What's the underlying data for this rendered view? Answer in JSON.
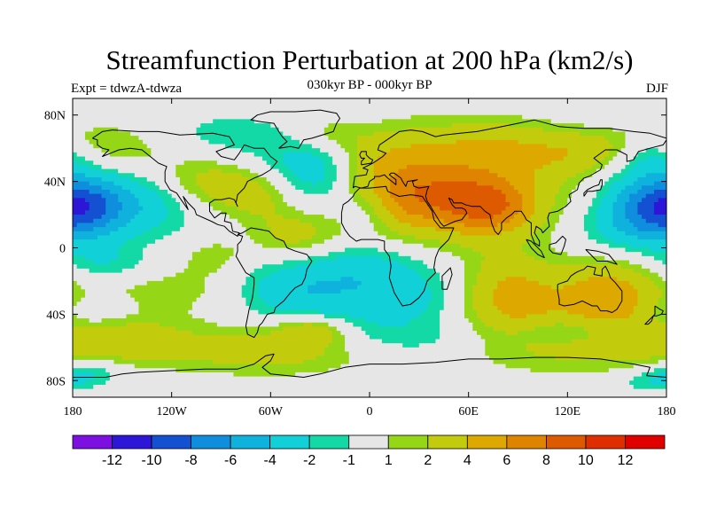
{
  "chart_data": {
    "type": "heatmap",
    "title": "Streamfunction Perturbation at 200 hPa (km2/s)",
    "subtitle": "030kyr BP - 000kyr BP",
    "left_label": "Expt = tdwzA-tdwza",
    "right_label": "DJF",
    "xlabel": "",
    "ylabel": "",
    "xlim": [
      -180,
      180
    ],
    "ylim": [
      -90,
      90
    ],
    "x_ticks": [
      {
        "value": -180,
        "label": "180"
      },
      {
        "value": -120,
        "label": "120W"
      },
      {
        "value": -60,
        "label": "60W"
      },
      {
        "value": 0,
        "label": "0"
      },
      {
        "value": 60,
        "label": "60E"
      },
      {
        "value": 120,
        "label": "120E"
      },
      {
        "value": 180,
        "label": "180"
      }
    ],
    "y_ticks": [
      {
        "value": 80,
        "label": "80N"
      },
      {
        "value": 40,
        "label": "40N"
      },
      {
        "value": 0,
        "label": "0"
      },
      {
        "value": -40,
        "label": "40S"
      },
      {
        "value": -80,
        "label": "80S"
      }
    ],
    "colorbar": {
      "levels": [
        -12,
        -10,
        -8,
        -6,
        -4,
        -2,
        -1,
        1,
        2,
        4,
        6,
        8,
        10,
        12
      ],
      "labels": [
        "-12",
        "-10",
        "-8",
        "-6",
        "-4",
        "-2",
        "-1",
        "1",
        "2",
        "4",
        "6",
        "8",
        "10",
        "12"
      ],
      "colors": [
        "#7b10e0",
        "#2e16d8",
        "#1450d2",
        "#0f8edd",
        "#0fb2dd",
        "#12d0d8",
        "#12d9a5",
        "#e6e6e6",
        "#95d617",
        "#c3cc0c",
        "#dda800",
        "#df8400",
        "#dd5a00",
        "#df2e00",
        "#e00000"
      ]
    },
    "field_features": [
      {
        "name": "Atlantic-Eurasia high",
        "lon": 40,
        "lat": 38,
        "value": 6
      },
      {
        "name": "Tibet high",
        "lon": 72,
        "lat": 25,
        "value": 8
      },
      {
        "name": "North Atlantic low",
        "lon": -22,
        "lat": 48,
        "value": -5
      },
      {
        "name": "Western Pacific low",
        "lon": 175,
        "lat": 25,
        "value": -5
      },
      {
        "name": "Eastern Pacific low",
        "lon": -175,
        "lat": 25,
        "value": -5
      },
      {
        "name": "Southern Atlantic-Africa low",
        "lon": 10,
        "lat": -25,
        "value": -3
      },
      {
        "name": "Australia high",
        "lon": 145,
        "lat": -28,
        "value": 5
      },
      {
        "name": "Indian Ocean high",
        "lon": 85,
        "lat": -28,
        "value": 5
      },
      {
        "name": "North America high",
        "lon": -100,
        "lat": 35,
        "value": 4
      },
      {
        "name": "South Pacific high",
        "lon": -80,
        "lat": -60,
        "value": 3
      }
    ]
  }
}
